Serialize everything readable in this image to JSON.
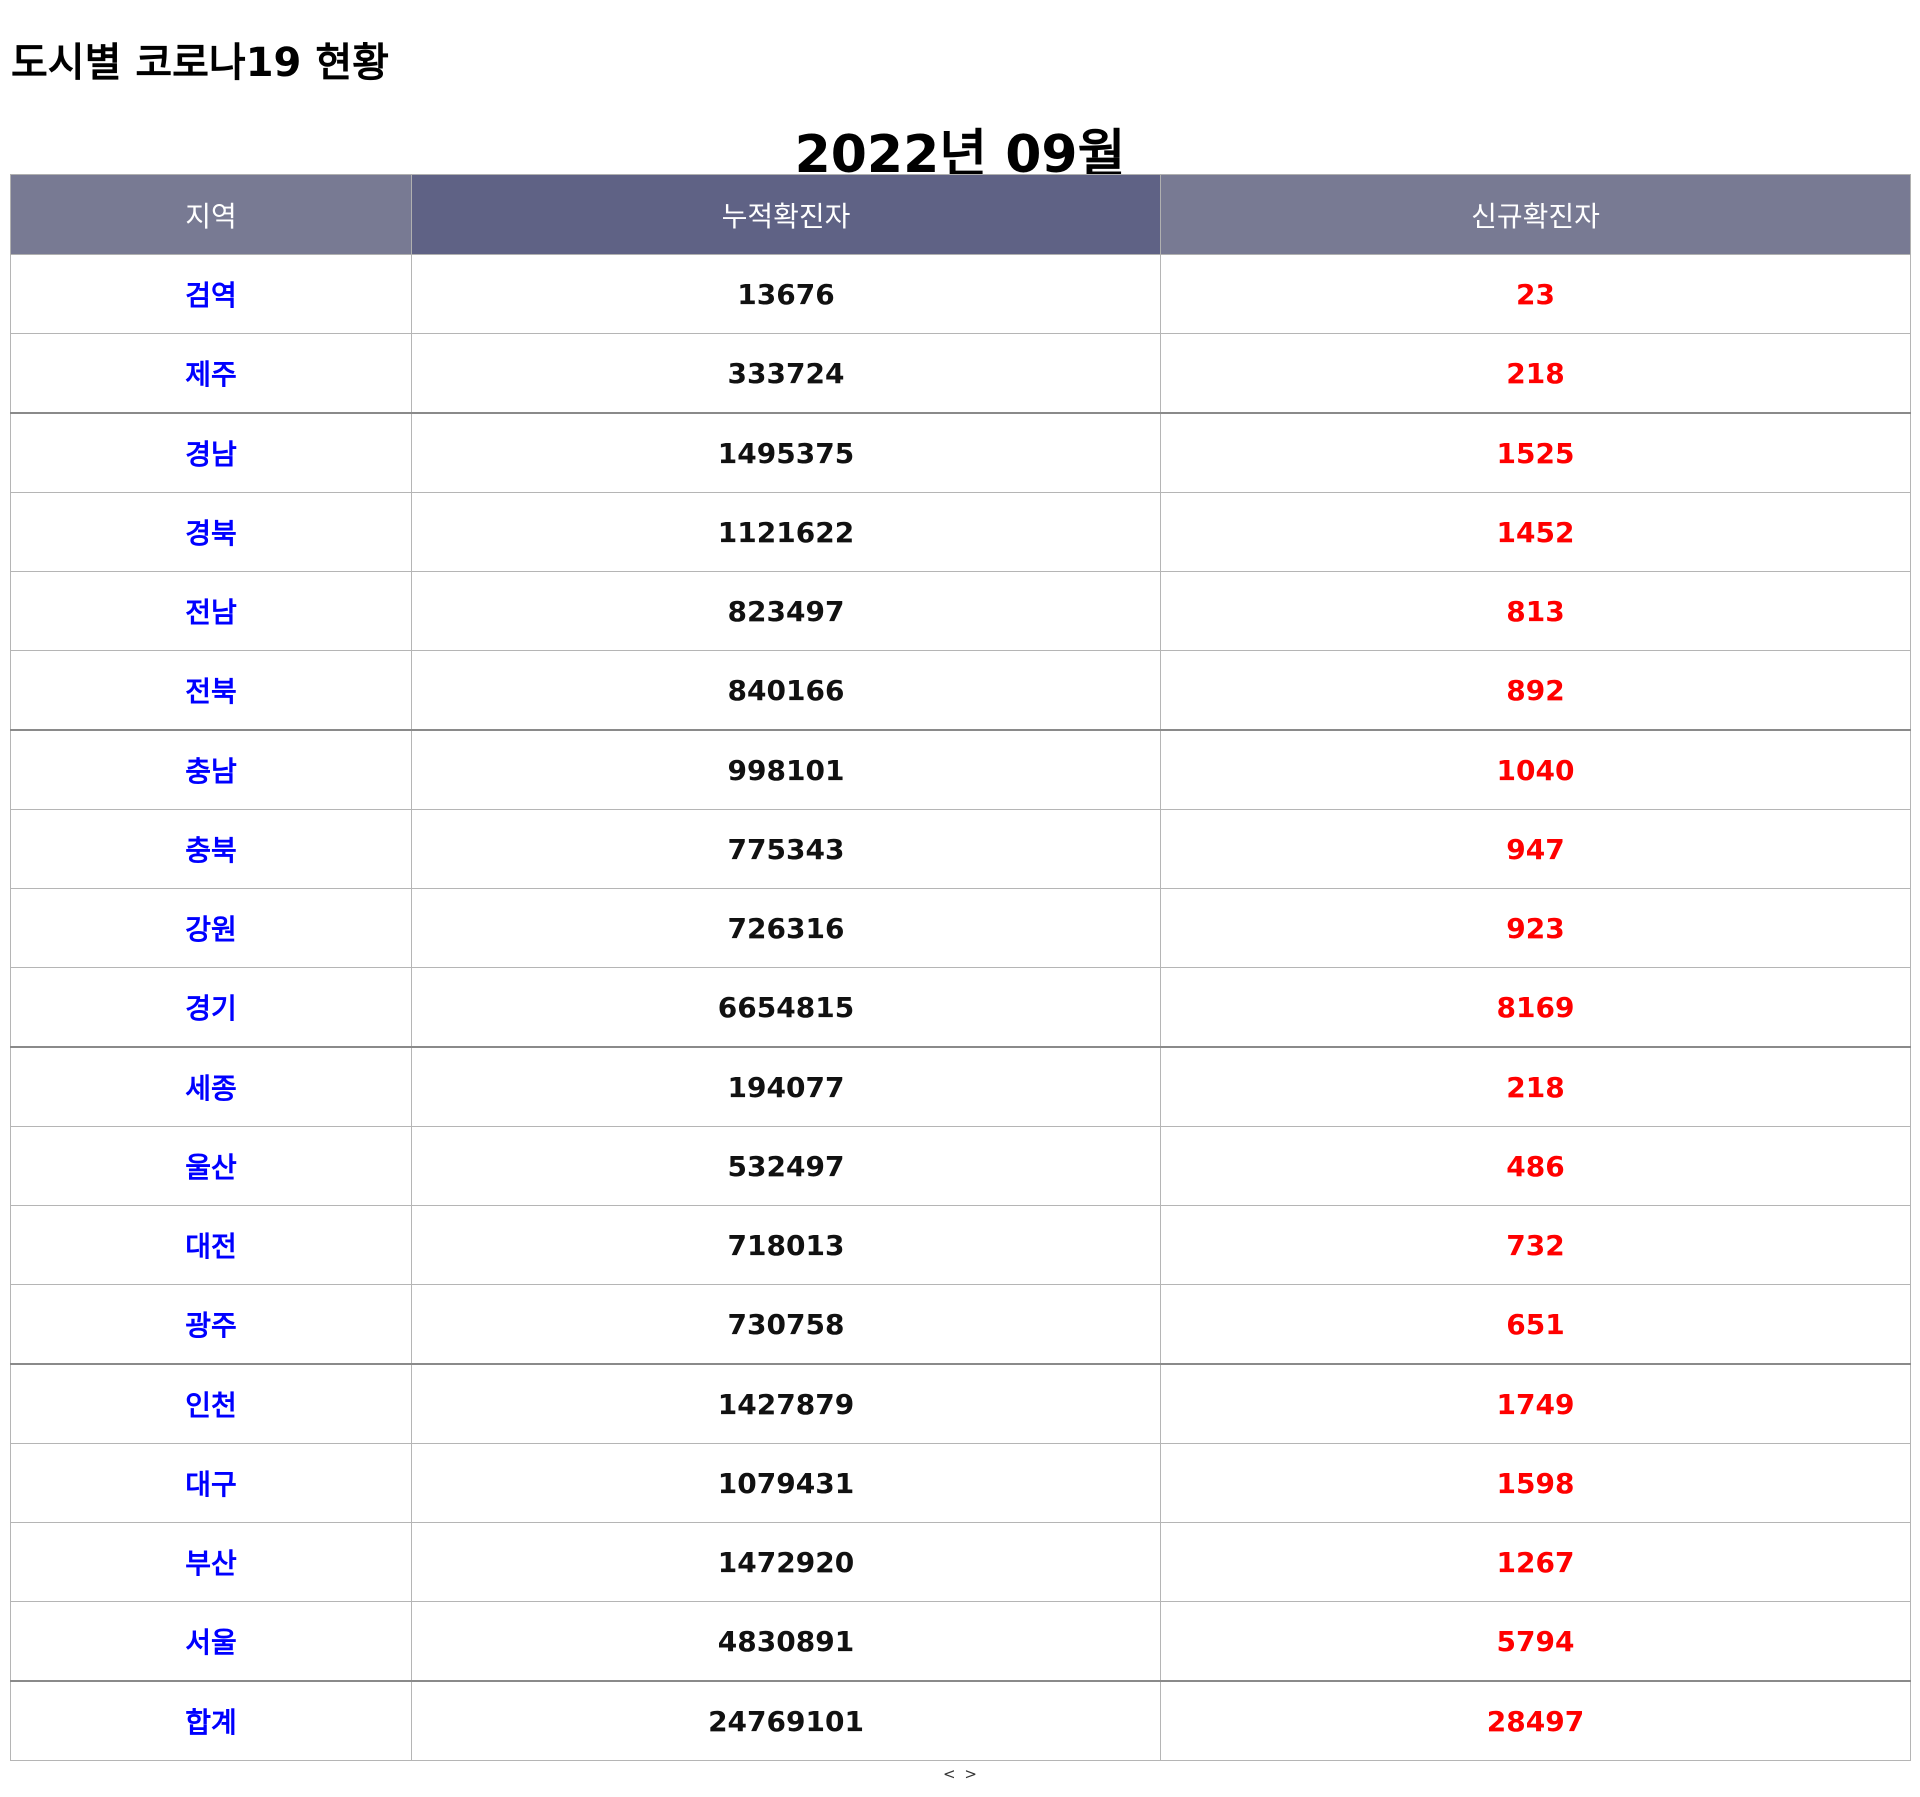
{
  "page": {
    "title": "도시별 코로나19 현황",
    "period": "2022년 09월"
  },
  "table": {
    "headers": {
      "region": "지역",
      "cumulative": "누적확진자",
      "new": "신규확진자"
    },
    "rows": [
      {
        "region": "검역",
        "cumulative": "13676",
        "new": "23"
      },
      {
        "region": "제주",
        "cumulative": "333724",
        "new": "218"
      },
      {
        "region": "경남",
        "cumulative": "1495375",
        "new": "1525"
      },
      {
        "region": "경북",
        "cumulative": "1121622",
        "new": "1452"
      },
      {
        "region": "전남",
        "cumulative": "823497",
        "new": "813"
      },
      {
        "region": "전북",
        "cumulative": "840166",
        "new": "892"
      },
      {
        "region": "충남",
        "cumulative": "998101",
        "new": "1040"
      },
      {
        "region": "충북",
        "cumulative": "775343",
        "new": "947"
      },
      {
        "region": "강원",
        "cumulative": "726316",
        "new": "923"
      },
      {
        "region": "경기",
        "cumulative": "6654815",
        "new": "8169"
      },
      {
        "region": "세종",
        "cumulative": "194077",
        "new": "218"
      },
      {
        "region": "울산",
        "cumulative": "532497",
        "new": "486"
      },
      {
        "region": "대전",
        "cumulative": "718013",
        "new": "732"
      },
      {
        "region": "광주",
        "cumulative": "730758",
        "new": "651"
      },
      {
        "region": "인천",
        "cumulative": "1427879",
        "new": "1749"
      },
      {
        "region": "대구",
        "cumulative": "1079431",
        "new": "1598"
      },
      {
        "region": "부산",
        "cumulative": "1472920",
        "new": "1267"
      },
      {
        "region": "서울",
        "cumulative": "4830891",
        "new": "5794"
      },
      {
        "region": "합계",
        "cumulative": "24769101",
        "new": "28497"
      }
    ]
  },
  "pager": {
    "prev": "<",
    "next": ">"
  },
  "colors": {
    "header_bg": "#787a93",
    "header_active_bg": "#5f6285",
    "region_text": "#0000ff",
    "new_text": "#ff0000"
  }
}
